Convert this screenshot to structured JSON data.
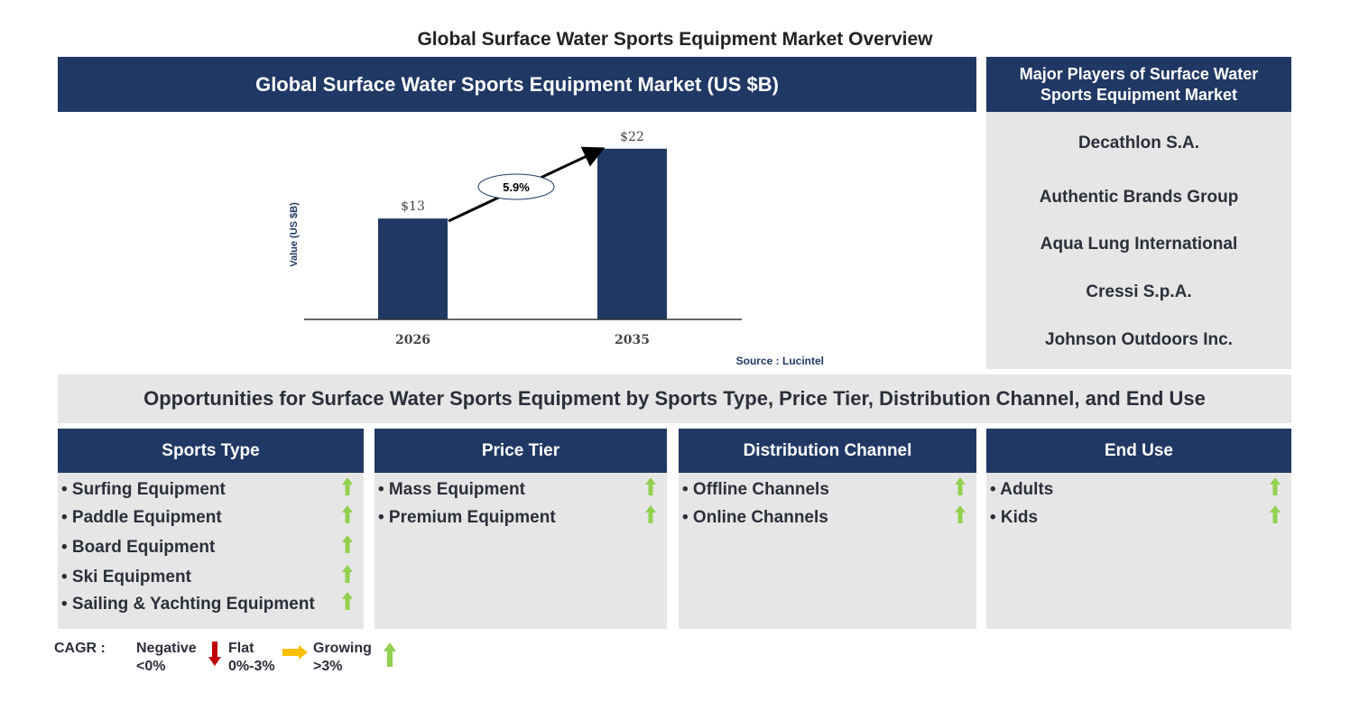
{
  "title": "Global Surface Water Sports Equipment Market Overview",
  "market_header": "Global Surface Water Sports Equipment Market (US $B)",
  "chart_data": {
    "type": "bar",
    "categories": [
      "2026",
      "2035"
    ],
    "values": [
      13,
      22
    ],
    "data_labels": [
      "$13",
      "$22"
    ],
    "ylabel": "Value (US $B)",
    "cagr_label": "5.9%",
    "source": "Source : Lucintel",
    "ylim": [
      0,
      25
    ],
    "bar_color": "#203864"
  },
  "players": {
    "header": "Major Players of Surface Water Sports Equipment Market",
    "items": [
      "Decathlon S.A.",
      "Authentic Brands Group",
      "Aqua Lung International",
      "Cressi S.p.A.",
      "Johnson Outdoors Inc."
    ]
  },
  "opportunities_header": "Opportunities for Surface Water Sports Equipment by Sports Type, Price Tier, Distribution Channel, and End Use",
  "segments": [
    {
      "title": "Sports Type",
      "items": [
        "• Surfing Equipment",
        "• Paddle Equipment",
        "• Board Equipment",
        "• Ski Equipment",
        "• Sailing & Yachting Equipment"
      ],
      "trend": "growing"
    },
    {
      "title": "Price Tier",
      "items": [
        "• Mass Equipment",
        "• Premium Equipment"
      ],
      "trend": "growing"
    },
    {
      "title": "Distribution Channel",
      "items": [
        "• Offline Channels",
        "• Online Channels"
      ],
      "trend": "growing"
    },
    {
      "title": "End Use",
      "items": [
        "• Adults",
        "• Kids"
      ],
      "trend": "growing"
    }
  ],
  "legend": {
    "label": "CAGR :",
    "negative": "Negative",
    "negative_range": "<0%",
    "flat": "Flat",
    "flat_range": "0%-3%",
    "growing": "Growing",
    "growing_range": ">3%",
    "colors": {
      "negative": "#c00000",
      "flat": "#ffc000",
      "growing": "#92d050"
    }
  }
}
